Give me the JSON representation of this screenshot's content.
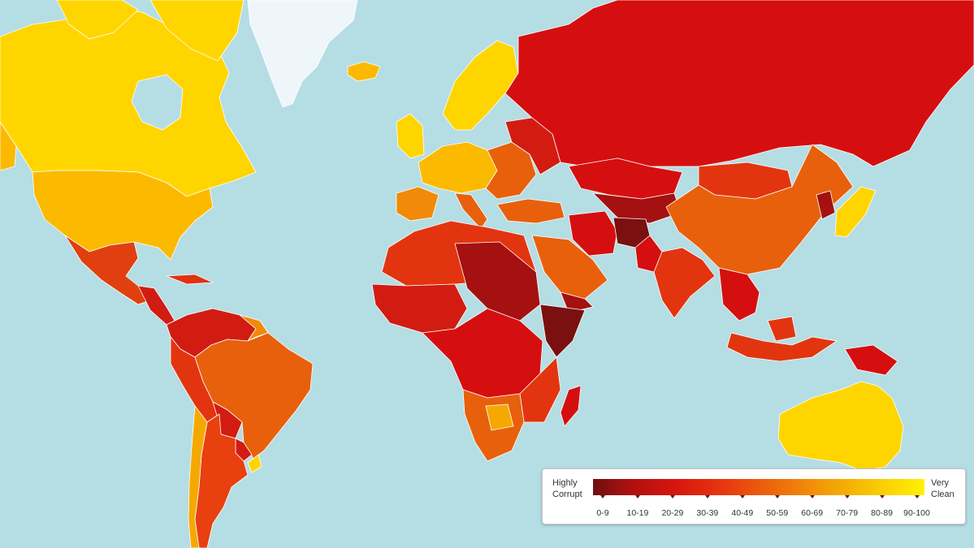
{
  "legend": {
    "left_label_line1": "Highly",
    "left_label_line2": "Corrupt",
    "right_label_line1": "Very",
    "right_label_line2": "Clean",
    "ranges": [
      "0-9",
      "10-19",
      "20-29",
      "30-39",
      "40-49",
      "50-59",
      "60-69",
      "70-79",
      "80-89",
      "90-100"
    ]
  },
  "colors": {
    "ocean": "#b5dde4",
    "greenland": "#eef6fa",
    "score_0_9": "#7a1010",
    "score_10_19": "#a51010",
    "score_20_29": "#d50f0f",
    "score_30_39": "#e2350f",
    "score_40_49": "#e8600c",
    "score_50_59": "#f08a08",
    "score_60_69": "#f5a900",
    "score_70_79": "#fbc000",
    "score_80_89": "#ffd500",
    "score_90_100": "#ffe400"
  }
}
